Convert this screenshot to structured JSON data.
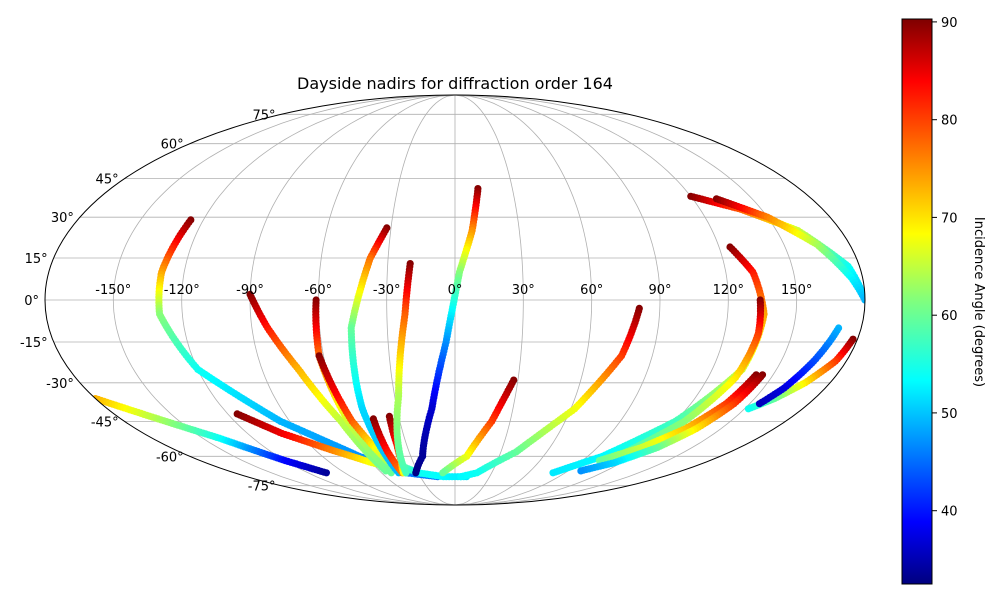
{
  "chart_data": {
    "type": "scatter",
    "projection": "mollweide",
    "title": "Dayside nadirs for diffraction order 164",
    "grid": true,
    "x_ticks": [
      "-150°",
      "-120°",
      "-90°",
      "-60°",
      "-30°",
      "0°",
      "30°",
      "60°",
      "90°",
      "120°",
      "150°"
    ],
    "y_ticks": [
      "75°",
      "60°",
      "45°",
      "30°",
      "15°",
      "0°",
      "-15°",
      "-30°",
      "-45°",
      "-60°",
      "-75°"
    ],
    "colorbar": {
      "label": "Incidence Angle (degrees)",
      "colormap": "jet",
      "range": [
        32.5,
        90.3
      ],
      "ticks": [
        "40",
        "50",
        "60",
        "70",
        "80",
        "90"
      ]
    },
    "series": [
      {
        "lon": [
          -126,
          -130,
          -130,
          -120,
          -95,
          -65,
          -40,
          -15
        ],
        "lat": [
          29,
          10,
          -5,
          -25,
          -45,
          -60,
          -68,
          -70
        ],
        "inc": [
          90,
          74,
          62,
          55,
          50,
          48,
          47,
          46
        ]
      },
      {
        "lon": [
          -180,
          -160,
          -140,
          -120,
          -105
        ],
        "lat": [
          -36,
          -44,
          -52,
          -62,
          -68
        ],
        "inc": [
          73,
          64,
          55,
          40,
          34
        ]
      },
      {
        "lon": [
          -115,
          -100,
          -80,
          -60,
          -40
        ],
        "lat": [
          -42,
          -50,
          -57,
          -63,
          -67
        ],
        "inc": [
          90,
          84,
          76,
          68,
          60
        ]
      },
      {
        "lon": [
          -90,
          -83,
          -73,
          -62,
          -55
        ],
        "lat": [
          2,
          -10,
          -25,
          -45,
          -67
        ],
        "inc": [
          90,
          82,
          73,
          65,
          60
        ]
      },
      {
        "lon": [
          -61,
          -62,
          -58,
          -52
        ],
        "lat": [
          0,
          -20,
          -45,
          -68
        ],
        "inc": [
          90,
          77,
          66,
          60
        ]
      },
      {
        "lon": [
          -62,
          -56,
          -48,
          -30,
          -10,
          10
        ],
        "lat": [
          -20,
          -45,
          -62,
          -68,
          -70,
          -70
        ],
        "inc": [
          90,
          78,
          64,
          55,
          54,
          53
        ]
      },
      {
        "lon": [
          -32,
          -38,
          -46,
          -48,
          -46
        ],
        "lat": [
          26,
          15,
          -10,
          -40,
          -68
        ],
        "inc": [
          90,
          77,
          60,
          52,
          50
        ]
      },
      {
        "lon": [
          -44,
          -44,
          -43
        ],
        "lat": [
          -44,
          -58,
          -68
        ],
        "inc": [
          90,
          82,
          76
        ]
      },
      {
        "lon": [
          -35,
          -36,
          -38,
          -42
        ],
        "lat": [
          -43,
          -55,
          -62,
          -68
        ],
        "inc": [
          90,
          82,
          75,
          68
        ]
      },
      {
        "lon": [
          -20,
          -22,
          -28,
          -40
        ],
        "lat": [
          13,
          -5,
          -35,
          -68
        ],
        "inc": [
          90,
          78,
          64,
          58
        ]
      },
      {
        "lon": [
          12,
          8,
          2,
          -4,
          -12,
          -22,
          -32
        ],
        "lat": [
          41,
          25,
          10,
          -15,
          -40,
          -60,
          -68
        ],
        "inc": [
          90,
          75,
          62,
          48,
          37,
          34,
          33
        ]
      },
      {
        "lon": [
          28,
          20,
          8,
          -10
        ],
        "lat": [
          -29,
          -45,
          -60,
          -68
        ],
        "inc": [
          90,
          80,
          68,
          60
        ]
      },
      {
        "lon": [
          81,
          76,
          62,
          40,
          18,
          5
        ],
        "lat": [
          -3,
          -20,
          -40,
          -58,
          -68,
          -70
        ],
        "inc": [
          90,
          80,
          68,
          60,
          55,
          54
        ]
      },
      {
        "lon": [
          120,
          140,
          160,
          175,
          180
        ],
        "lat": [
          38,
          33,
          25,
          12,
          0
        ],
        "inc": [
          90,
          78,
          66,
          55,
          50
        ]
      },
      {
        "lon": [
          132,
          150,
          165,
          175,
          180
        ],
        "lat": [
          37,
          30,
          20,
          8,
          0
        ],
        "inc": [
          90,
          76,
          64,
          54,
          50
        ]
      },
      {
        "lon": [
          125,
          132,
          136,
          134,
          120,
          100,
          80
        ],
        "lat": [
          19,
          10,
          -5,
          -25,
          -45,
          -60,
          -68
        ],
        "inc": [
          90,
          82,
          74,
          66,
          58,
          54,
          53
        ]
      },
      {
        "lon": [
          134,
          135,
          133,
          125,
          110
        ],
        "lat": [
          0,
          -12,
          -28,
          -45,
          -60
        ],
        "inc": [
          90,
          80,
          70,
          62,
          58
        ]
      },
      {
        "lon": [
          142,
          138,
          130,
          118,
          102
        ],
        "lat": [
          -27,
          -38,
          -48,
          -56,
          -62
        ],
        "inc": [
          90,
          80,
          72,
          66,
          60
        ]
      },
      {
        "lon": [
          145,
          142,
          136,
          128,
          115,
          100
        ],
        "lat": [
          -27,
          -38,
          -48,
          -56,
          -63,
          -67
        ],
        "inc": [
          90,
          80,
          70,
          60,
          52,
          48
        ]
      },
      {
        "lon": [
          178,
          175,
          168,
          160,
          152
        ],
        "lat": [
          -14,
          -22,
          -30,
          -36,
          -40
        ],
        "inc": [
          90,
          80,
          70,
          60,
          55
        ]
      },
      {
        "lon": [
          170,
          165,
          160,
          155
        ],
        "lat": [
          -10,
          -22,
          -32,
          -38
        ],
        "inc": [
          50,
          44,
          38,
          36
        ]
      }
    ]
  }
}
